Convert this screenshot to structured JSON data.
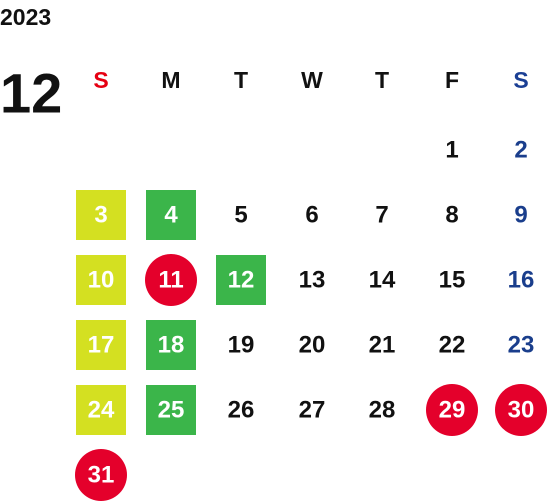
{
  "year": "2023",
  "month": "12",
  "weekdays": [
    "S",
    "M",
    "T",
    "W",
    "T",
    "F",
    "S"
  ],
  "sunday_color": "#e60012",
  "saturday_color": "#1b3f94",
  "saturday_day_color": "#1a3e8c",
  "weeks": [
    [
      null,
      null,
      null,
      null,
      null,
      1,
      2
    ],
    [
      {
        "day": 3,
        "shape": "square",
        "color": "#d4e021"
      },
      {
        "day": 4,
        "shape": "square",
        "color": "#3bb54a"
      },
      5,
      6,
      7,
      8,
      9
    ],
    [
      {
        "day": 10,
        "shape": "square",
        "color": "#d4e021"
      },
      {
        "day": 11,
        "shape": "circle",
        "color": "#e4002b"
      },
      {
        "day": 12,
        "shape": "square",
        "color": "#3bb54a"
      },
      13,
      14,
      15,
      16
    ],
    [
      {
        "day": 17,
        "shape": "square",
        "color": "#d4e021"
      },
      {
        "day": 18,
        "shape": "square",
        "color": "#3bb54a"
      },
      19,
      20,
      21,
      22,
      23
    ],
    [
      {
        "day": 24,
        "shape": "square",
        "color": "#d4e021"
      },
      {
        "day": 25,
        "shape": "square",
        "color": "#3bb54a"
      },
      26,
      27,
      28,
      {
        "day": 29,
        "shape": "circle",
        "color": "#e4002b"
      },
      {
        "day": 30,
        "shape": "circle",
        "color": "#e4002b"
      }
    ],
    [
      {
        "day": 31,
        "shape": "circle",
        "color": "#e4002b"
      },
      null,
      null,
      null,
      null,
      null,
      null
    ]
  ]
}
